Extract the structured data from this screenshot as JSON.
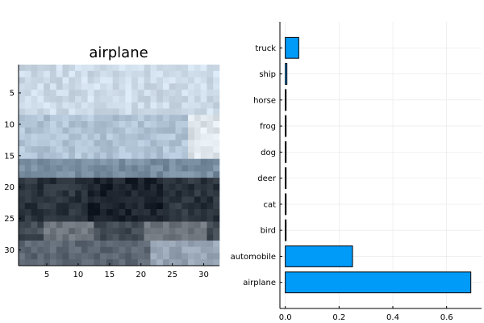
{
  "chart_data": [
    {
      "type": "heatmap",
      "title": "airplane",
      "x_ticks": [
        "5",
        "10",
        "15",
        "20",
        "25",
        "30"
      ],
      "y_ticks": [
        "5",
        "10",
        "15",
        "20",
        "25",
        "30"
      ],
      "xlim": [
        0.5,
        32.5
      ],
      "ylim": [
        0.5,
        32.5
      ],
      "grid": false
    },
    {
      "type": "bar",
      "orientation": "horizontal",
      "categories": [
        "airplane",
        "automobile",
        "bird",
        "cat",
        "deer",
        "dog",
        "frog",
        "horse",
        "ship",
        "truck"
      ],
      "values": [
        0.69,
        0.25,
        0.002,
        0.002,
        0.002,
        0.002,
        0.002,
        0.002,
        0.006,
        0.05
      ],
      "x_ticks": [
        "0.0",
        "0.2",
        "0.4",
        "0.6"
      ],
      "xlim": [
        -0.02,
        0.73
      ],
      "grid": true,
      "colors": {
        "bar": "#009af9",
        "edge": "#000000",
        "grid": "#e6e6e6"
      }
    }
  ]
}
